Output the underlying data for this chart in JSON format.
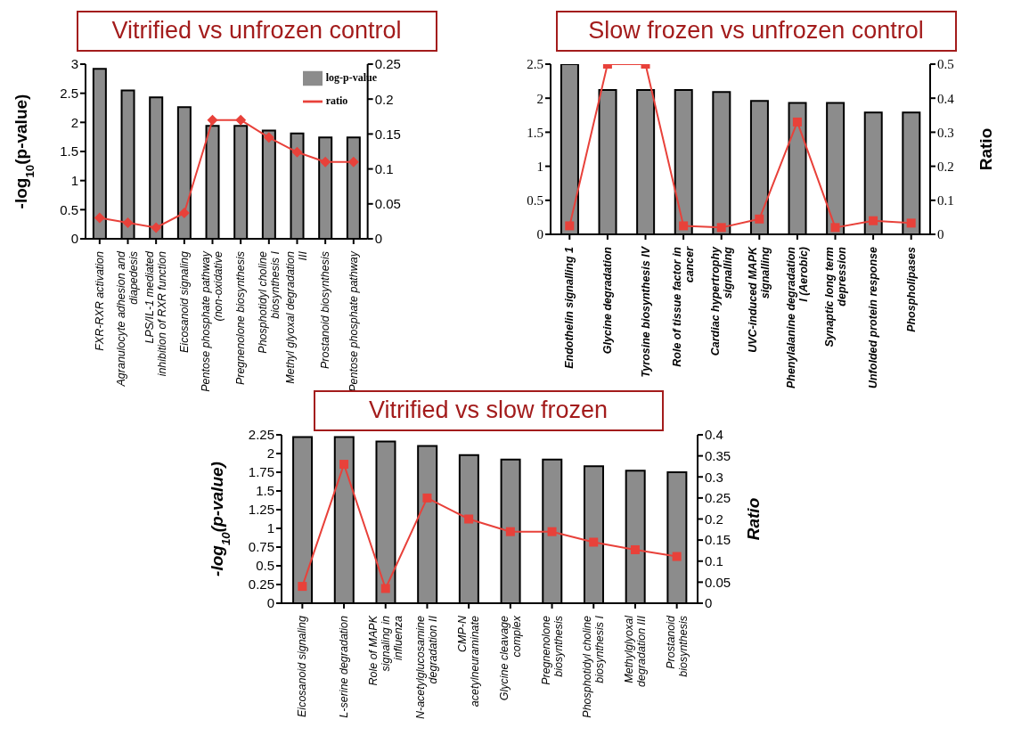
{
  "chart_data": [
    {
      "type": "bar",
      "title": "Vitrified vs unfrozen control",
      "ylabel": "-log$_{10}$(p-value)",
      "categories": [
        "FXR-RXR activation",
        "Agranulocyte adhesion and diapedesis",
        "LPS/IL-1 mediated inhibition of RXR function",
        "Eicosanoid signaling",
        "Pentose phosphate pathway (non-oxidative",
        "Pregnenolone biosynthesis",
        "Phosphotidyl choline biosynthesis I",
        "Methyl glyoxal degradation III",
        "Prostanoid biosynthesis",
        "Pentose phosphate pathway"
      ],
      "series": [
        {
          "name": "log-p-value",
          "color": "#8c8c8c",
          "values": [
            2.92,
            2.55,
            2.43,
            2.26,
            1.94,
            1.94,
            1.86,
            1.81,
            1.74,
            1.74
          ]
        },
        {
          "name": "ratio",
          "type": "line",
          "axis": "y2",
          "color": "#e8413a",
          "marker": "diamond",
          "values": [
            0.03,
            0.023,
            0.016,
            0.037,
            0.17,
            0.17,
            0.145,
            0.124,
            0.11,
            0.11
          ]
        }
      ],
      "ylim": [
        0,
        3
      ],
      "yticks": [
        0,
        0.5,
        1,
        1.5,
        2,
        2.5,
        3
      ],
      "y2lim": [
        0,
        0.25
      ],
      "y2ticks": [
        0,
        0.05,
        0.1,
        0.15,
        0.2,
        0.25
      ],
      "legend": "top right"
    },
    {
      "type": "bar",
      "title": "Slow frozen vs unfrozen control",
      "y2label": "Ratio",
      "categories": [
        "Endothelin signalling 1",
        "Glycine degradation",
        "Tyrosine biosynthesis IV",
        "Role of tissue factor in cancer",
        "Cardiac hypertrophy signalling",
        "UVC-induced MAPK signalling",
        "Phenylalanine degradation I  (Aerobic)",
        "Synaptic long term depression",
        "Unfolded protein response",
        "Phospholipases"
      ],
      "series": [
        {
          "color": "#8c8c8c",
          "values": [
            2.5,
            2.12,
            2.12,
            2.12,
            2.09,
            1.96,
            1.93,
            1.93,
            1.79,
            1.79
          ]
        },
        {
          "type": "line",
          "axis": "y2",
          "color": "#e8413a",
          "marker": "square",
          "values": [
            0.025,
            0.5,
            0.5,
            0.025,
            0.02,
            0.045,
            0.33,
            0.02,
            0.04,
            0.033
          ]
        }
      ],
      "ylim": [
        0,
        2.5
      ],
      "yticks": [
        0,
        0.5,
        1,
        1.5,
        2,
        2.5
      ],
      "y2lim": [
        0,
        0.5
      ],
      "y2ticks": [
        0,
        0.1,
        0.2,
        0.3,
        0.4,
        0.5
      ]
    },
    {
      "type": "bar",
      "title": "Vitrified vs slow frozen",
      "ylabel": "-log$_{10}$(p-value)",
      "y2label": "Ratio",
      "categories": [
        "Eicosanoid signaling",
        "L-serine degradation",
        "Role of MAPK signaling in influenza",
        "N-acetylglucosamine degradation II",
        "CMP-N acetylneuraminate",
        "Glycine cleavage complex",
        "Pregnenolone biosynthesis",
        "Phosphotidyl choline biosynthesis I",
        "Methylglyoxal degradation III",
        "Prostanoid biosynthesis"
      ],
      "series": [
        {
          "color": "#8c8c8c",
          "values": [
            2.22,
            2.22,
            2.16,
            2.1,
            1.98,
            1.92,
            1.92,
            1.83,
            1.77,
            1.75
          ]
        },
        {
          "type": "line",
          "axis": "y2",
          "color": "#e8413a",
          "marker": "square",
          "values": [
            0.04,
            0.33,
            0.035,
            0.25,
            0.2,
            0.17,
            0.17,
            0.145,
            0.127,
            0.111
          ]
        }
      ],
      "ylim": [
        0,
        2.25
      ],
      "yticks": [
        0,
        0.25,
        0.5,
        0.75,
        1,
        1.25,
        1.5,
        1.75,
        2,
        2.25
      ],
      "y2lim": [
        0,
        0.4
      ],
      "y2ticks": [
        0,
        0.05,
        0.1,
        0.15,
        0.2,
        0.25,
        0.3,
        0.35,
        0.4
      ]
    }
  ]
}
